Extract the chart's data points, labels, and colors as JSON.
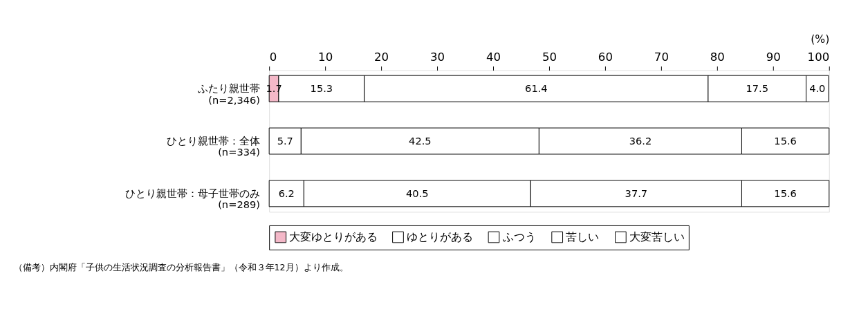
{
  "chart_data": {
    "type": "bar",
    "orientation": "horizontal",
    "stacked": true,
    "categories": [
      "ふたり親世帯\n(n=2,346)",
      "ひとり親世帯：全体\n(n=334)",
      "ひとり親世帯：母子世帯のみ\n(n=289)"
    ],
    "series": [
      {
        "name": "大変ゆとりがある",
        "color": "#f4b8c8",
        "values": [
          1.7,
          null,
          null
        ],
        "value_labels": [
          "1.7",
          null,
          null
        ]
      },
      {
        "name": "ゆとりがある",
        "color": "#ffffff",
        "values": [
          15.3,
          5.7,
          6.2
        ],
        "value_labels": [
          "15.3",
          "5.7",
          "6.2"
        ]
      },
      {
        "name": "ふつう",
        "color": "#ffffff",
        "values": [
          61.4,
          42.5,
          40.5
        ],
        "value_labels": [
          "61.4",
          "42.5",
          "40.5"
        ]
      },
      {
        "name": "苦しい",
        "color": "#ffffff",
        "values": [
          17.5,
          36.2,
          37.7
        ],
        "value_labels": [
          "17.5",
          "36.2",
          "37.7"
        ]
      },
      {
        "name": "大変苦しい",
        "color": "#ffffff",
        "values": [
          4.0,
          15.6,
          15.6
        ],
        "value_labels": [
          "4.0",
          "15.6",
          "15.6"
        ]
      }
    ],
    "xlim": [
      0,
      100
    ],
    "xticks": [
      0,
      10,
      20,
      30,
      40,
      50,
      60,
      70,
      80,
      90,
      100
    ],
    "xlabel": "(%)",
    "legend": "bottom",
    "grid": false,
    "annotations": [
      "（備考）内閣府「子供の生活状況調査の分析報告書」（令和３年12月）より作成。"
    ]
  }
}
